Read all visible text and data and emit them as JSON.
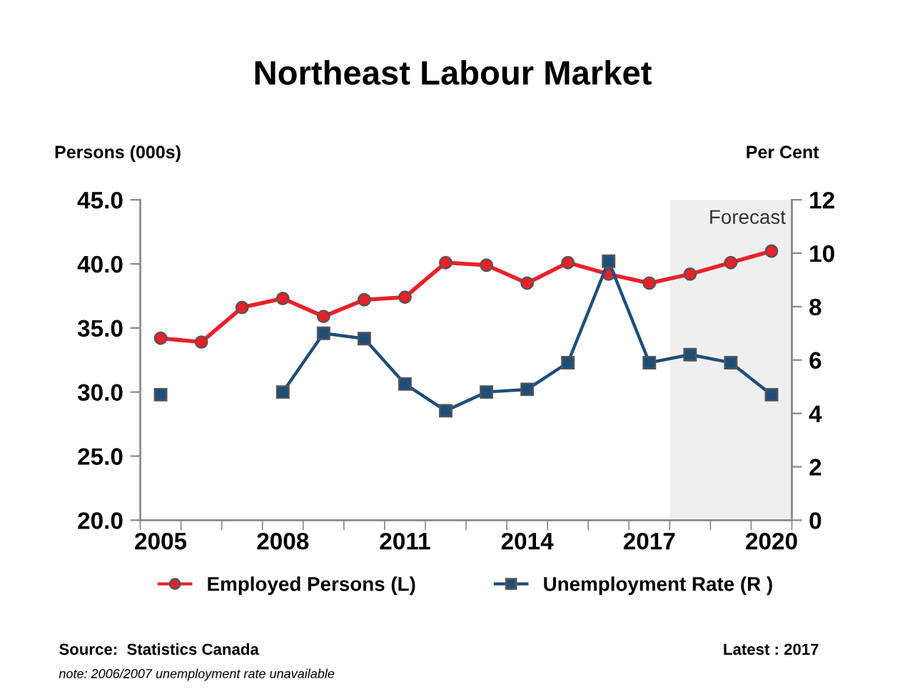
{
  "chart_data": {
    "type": "line",
    "title": "Northeast Labour Market",
    "ylabel": "Persons (000s)",
    "y2label": "Per Cent",
    "x": [
      2005,
      2006,
      2007,
      2008,
      2009,
      2010,
      2011,
      2012,
      2013,
      2014,
      2015,
      2016,
      2017,
      2018,
      2019,
      2020
    ],
    "series": [
      {
        "name": "Employed Persons (L)",
        "color": "#e8212a",
        "marker": "circle",
        "values": [
          34.2,
          33.9,
          36.6,
          37.3,
          35.9,
          37.2,
          37.4,
          40.1,
          39.9,
          38.5,
          40.1,
          39.2,
          38.5,
          39.2,
          40.1,
          41.0
        ]
      },
      {
        "name": "Unemployment Rate (R )",
        "color": "#1f4e79",
        "marker": "square",
        "axis": "y2",
        "values": [
          4.7,
          null,
          null,
          4.8,
          7.0,
          6.8,
          5.1,
          4.1,
          4.8,
          4.9,
          5.9,
          9.7,
          5.9,
          6.2,
          5.9,
          4.7
        ]
      }
    ],
    "xlim": [
      2004.5,
      2020.5
    ],
    "xticks": [
      2005,
      2008,
      2011,
      2014,
      2017,
      2020,
      {
        "value": 2004.5,
        "label": null
      },
      {
        "value": 2005.5,
        "label": null
      },
      {
        "value": 2006.5,
        "label": null
      },
      {
        "value": 2007.5,
        "label": null
      },
      {
        "value": 2008.5,
        "label": null
      },
      {
        "value": 2009.5,
        "label": null
      },
      {
        "value": 2010.5,
        "label": null
      },
      {
        "value": 2011.5,
        "label": null
      },
      {
        "value": 2012.5,
        "label": null
      },
      {
        "value": 2013.5,
        "label": null
      },
      {
        "value": 2014.5,
        "label": null
      },
      {
        "value": 2015.5,
        "label": null
      },
      {
        "value": 2016.5,
        "label": null
      },
      {
        "value": 2017.5,
        "label": null
      },
      {
        "value": 2018.5,
        "label": null
      },
      {
        "value": 2019.5,
        "label": null
      },
      {
        "value": 2020.5,
        "label": null
      }
    ],
    "ylim": [
      20,
      45
    ],
    "yticks": [
      {
        "value": 20,
        "label": "20.0"
      },
      {
        "value": 25,
        "label": "25.0"
      },
      {
        "value": 30,
        "label": "30.0"
      },
      {
        "value": 35,
        "label": "35.0"
      },
      {
        "value": 40,
        "label": "40.0"
      },
      {
        "value": 45,
        "label": "45.0"
      }
    ],
    "y2lim": [
      0,
      12
    ],
    "y2ticks": [
      0,
      2,
      4,
      6,
      8,
      10,
      12
    ],
    "bands": [
      {
        "axis": "x",
        "from": 2017.5,
        "to": 2020.5,
        "label": "Forecast",
        "color": "#efefef"
      }
    ],
    "grid": false,
    "legend": "bottom",
    "line_style": "solid",
    "annotations": [
      "Source:  Statistics Canada",
      "Latest : 2017",
      "note: 2006/2007 unemployment rate unavailable"
    ]
  }
}
